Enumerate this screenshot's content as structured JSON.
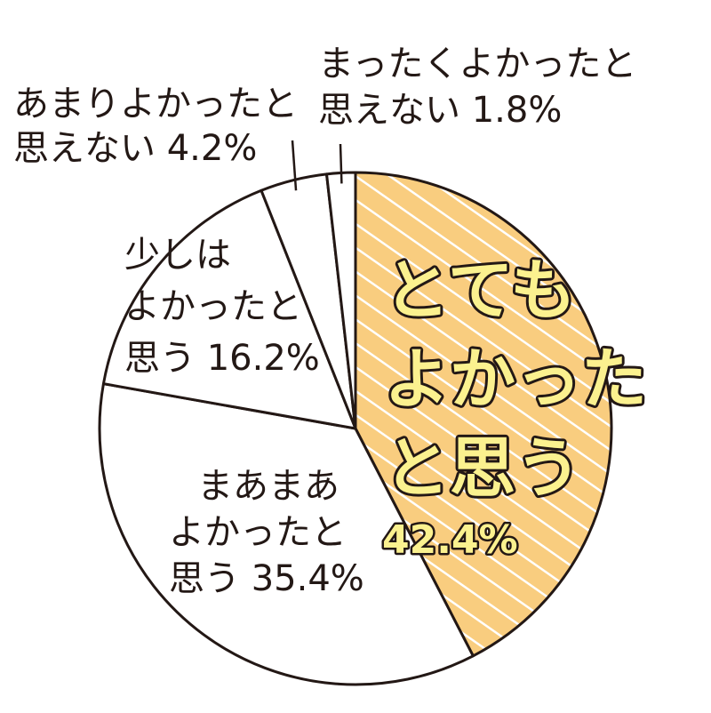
{
  "chart_data": {
    "type": "pie",
    "title": "",
    "colors": {
      "highlight": "#f9cd7f",
      "hatch": "#ffffff",
      "other": "#ffffff",
      "stroke": "#231815",
      "highlight_text": "#fbf18f"
    },
    "slices": [
      {
        "label_lines": [
          "とても",
          "よかった",
          "と思う"
        ],
        "value": 42.4,
        "value_text": "42.4%",
        "highlight": true
      },
      {
        "label_lines": [
          "まあまあ",
          "よかったと",
          "思う 35.4%"
        ],
        "value": 35.4
      },
      {
        "label_lines": [
          "少しは",
          "よかったと",
          "思う 16.2%"
        ],
        "value": 16.2
      },
      {
        "label_lines": [
          "あまりよかったと",
          "思えない 4.2%"
        ],
        "value": 4.2
      },
      {
        "label_lines": [
          "まったくよかったと",
          "思えない 1.8%"
        ],
        "value": 1.8
      }
    ]
  }
}
